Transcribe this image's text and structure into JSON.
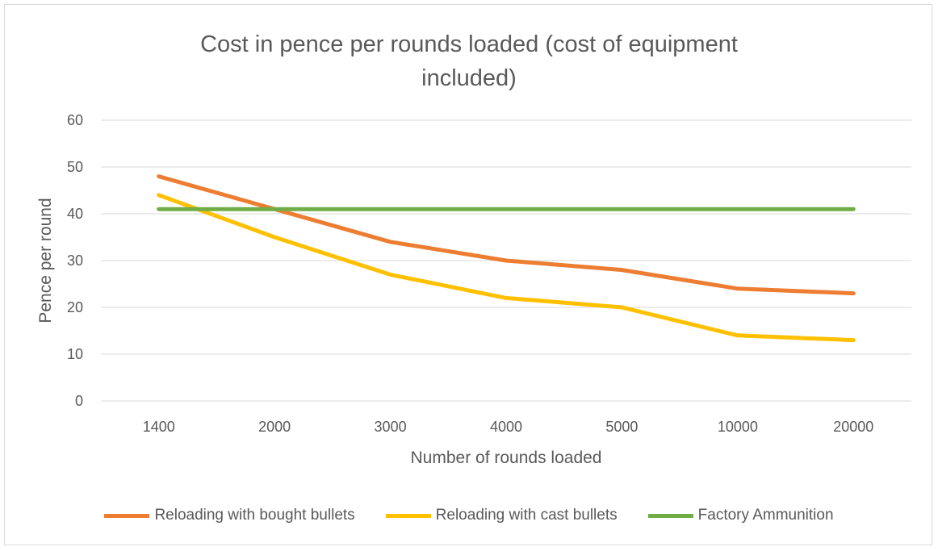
{
  "chart_data": {
    "type": "line",
    "title_line1": "Cost in pence per rounds loaded (cost of equipment",
    "title_line2": "included)",
    "xlabel": "Number of rounds loaded",
    "ylabel": "Pence per round",
    "categories": [
      "1400",
      "2000",
      "3000",
      "4000",
      "5000",
      "10000",
      "20000"
    ],
    "ylim": [
      0,
      60
    ],
    "yticks": [
      "0",
      "10",
      "20",
      "30",
      "40",
      "50",
      "60"
    ],
    "grid": true,
    "legend_position": "bottom",
    "series": [
      {
        "name": "Reloading with bought bullets",
        "color": "#ED7D31",
        "values": [
          48,
          41,
          34,
          30,
          28,
          24,
          23
        ]
      },
      {
        "name": "Reloading with cast bullets",
        "color": "#FFC000",
        "values": [
          44,
          35,
          27,
          22,
          20,
          14,
          13
        ]
      },
      {
        "name": "Factory Ammunition",
        "color": "#70AD47",
        "values": [
          41,
          41,
          41,
          41,
          41,
          41,
          41
        ]
      }
    ]
  }
}
